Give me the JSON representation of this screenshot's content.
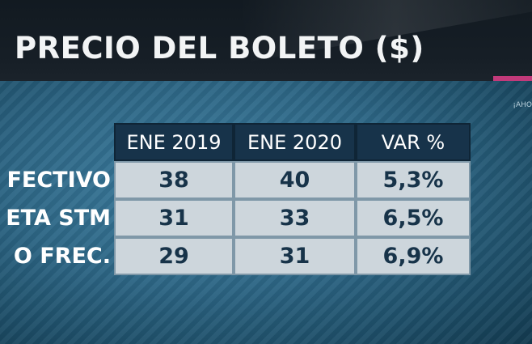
{
  "title": "PRECIO DEL BOLETO ($)",
  "corner_text": "¡AHO",
  "table": {
    "headers": [
      "ENE 2019",
      "ENE 2020",
      "VAR %"
    ],
    "rows": [
      {
        "label": "FECTIVO",
        "values": [
          "38",
          "40",
          "5,3%"
        ]
      },
      {
        "label": "ETA STM",
        "values": [
          "31",
          "33",
          "6,5%"
        ]
      },
      {
        "label": "O FREC.",
        "values": [
          "29",
          "31",
          "6,9%"
        ]
      }
    ]
  },
  "colors": {
    "title_bar": "#161e26",
    "board": "#2d6685",
    "header_cell": "#17334a",
    "value_cell": "#cdd6dc",
    "value_text": "#173349",
    "accent_strip": "#c23a7a"
  }
}
